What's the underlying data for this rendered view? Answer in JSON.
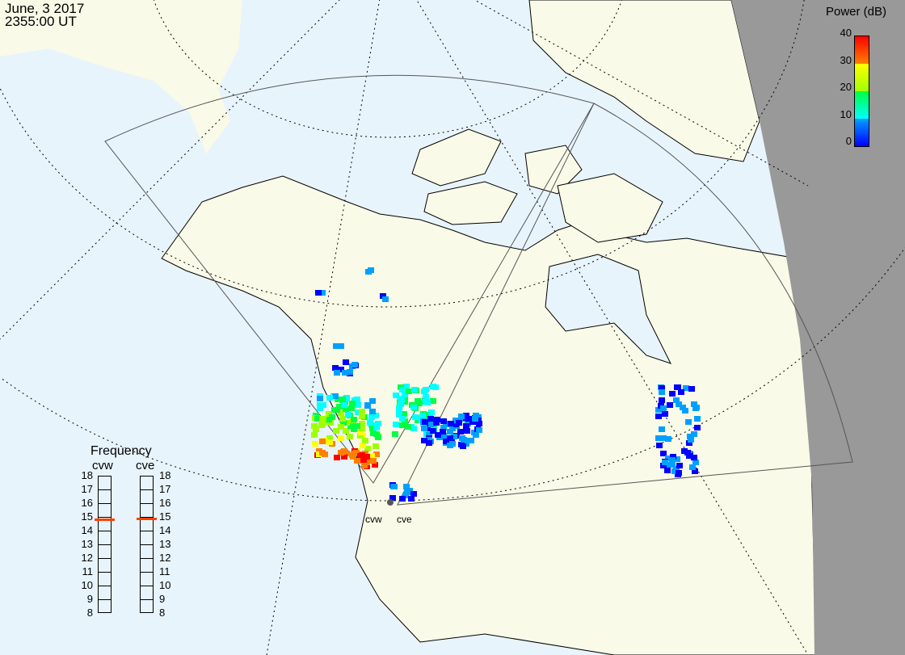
{
  "header": {
    "date": "June, 3 2017",
    "time": "2355:00 UT"
  },
  "colorbar": {
    "title": "Power (dB)",
    "ticks": [
      "40",
      "30",
      "20",
      "10",
      "0"
    ],
    "range": [
      0,
      40
    ],
    "colors": [
      "#0000ff",
      "#00a0ff",
      "#00ffff",
      "#00ff40",
      "#a0ff00",
      "#ffff00",
      "#ff8000",
      "#ff0000"
    ]
  },
  "frequency": {
    "title": "Frequency",
    "unit_range": [
      8,
      18
    ],
    "ticks": [
      "18",
      "17",
      "16",
      "15",
      "14",
      "13",
      "12",
      "11",
      "10",
      "9",
      "8"
    ],
    "radars": [
      {
        "name": "cvw",
        "value_mhz": 14.8
      },
      {
        "name": "cve",
        "value_mhz": 14.9
      }
    ],
    "marker_color": "#ff4000"
  },
  "sites": {
    "west": "cvw",
    "east": "cve"
  },
  "colors": {
    "ocean": "#e8f4fc",
    "land": "#fafae8",
    "night": "#999999"
  }
}
